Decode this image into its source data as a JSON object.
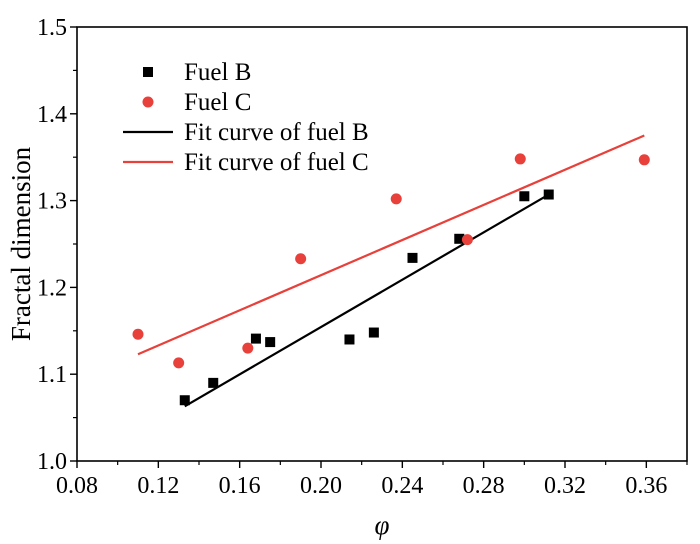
{
  "chart_data": {
    "type": "scatter",
    "title": "",
    "xlabel": "φ",
    "ylabel": "Fractal dimension",
    "xlim": [
      0.08,
      0.38
    ],
    "ylim": [
      1.0,
      1.5
    ],
    "xticks": [
      "0.08",
      "0.12",
      "0.16",
      "0.20",
      "0.24",
      "0.28",
      "0.32",
      "0.36"
    ],
    "xtick_values": [
      0.08,
      0.12,
      0.16,
      0.2,
      0.24,
      0.28,
      0.32,
      0.36
    ],
    "yticks": [
      "1.0",
      "1.1",
      "1.2",
      "1.3",
      "1.4",
      "1.5"
    ],
    "ytick_values": [
      1.0,
      1.1,
      1.2,
      1.3,
      1.4,
      1.5
    ],
    "grid": false,
    "legend_position": "top-left",
    "series": [
      {
        "name": "Fuel B",
        "kind": "scatter",
        "marker": "square",
        "color": "#000000",
        "points": [
          [
            0.133,
            1.07
          ],
          [
            0.147,
            1.09
          ],
          [
            0.168,
            1.141
          ],
          [
            0.175,
            1.137
          ],
          [
            0.214,
            1.14
          ],
          [
            0.226,
            1.148
          ],
          [
            0.245,
            1.234
          ],
          [
            0.268,
            1.256
          ],
          [
            0.3,
            1.305
          ],
          [
            0.312,
            1.307
          ]
        ]
      },
      {
        "name": "Fuel C",
        "kind": "scatter",
        "marker": "circle",
        "color": "#e8403a",
        "points": [
          [
            0.11,
            1.146
          ],
          [
            0.13,
            1.113
          ],
          [
            0.164,
            1.13
          ],
          [
            0.19,
            1.233
          ],
          [
            0.237,
            1.302
          ],
          [
            0.272,
            1.255
          ],
          [
            0.298,
            1.348
          ],
          [
            0.359,
            1.347
          ]
        ]
      },
      {
        "name": "Fit curve of fuel B",
        "kind": "line",
        "color": "#000000",
        "points": [
          [
            0.133,
            1.063
          ],
          [
            0.312,
            1.307
          ]
        ]
      },
      {
        "name": "Fit curve of fuel C",
        "kind": "line",
        "color": "#e8403a",
        "points": [
          [
            0.11,
            1.123
          ],
          [
            0.359,
            1.375
          ]
        ]
      }
    ]
  }
}
